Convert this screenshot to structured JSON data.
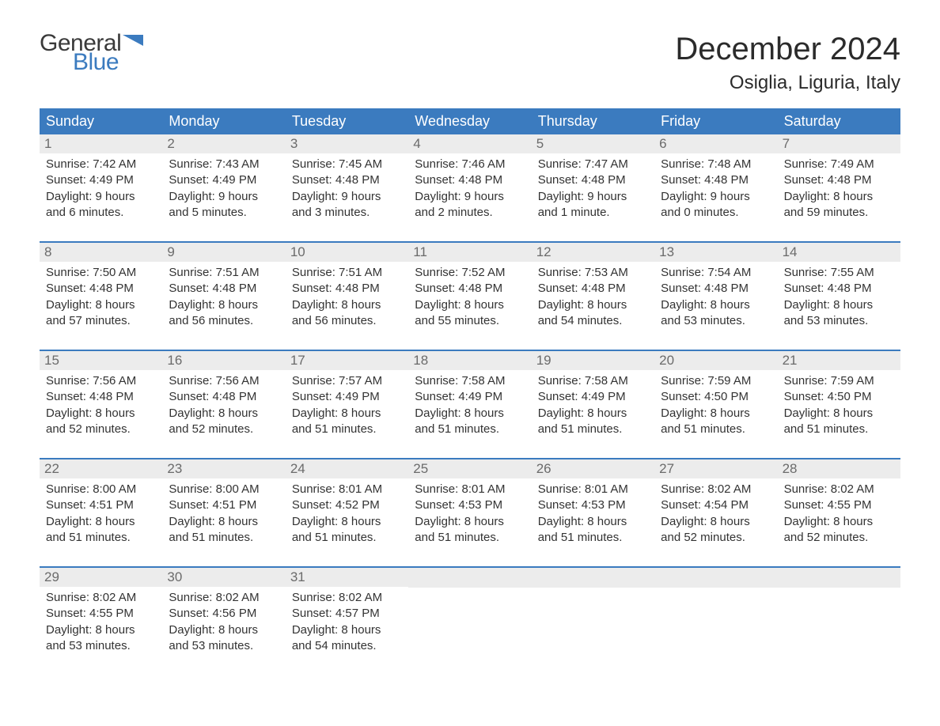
{
  "logo": {
    "general": "General",
    "blue": "Blue",
    "flag_color": "#3b7bbf"
  },
  "title": "December 2024",
  "location": "Osiglia, Liguria, Italy",
  "colors": {
    "header_bg": "#3b7bbf",
    "header_text": "#ffffff",
    "day_bg": "#ececec",
    "day_number": "#6b6b6b",
    "body_text": "#333333",
    "row_border": "#3b7bbf"
  },
  "weekdays": [
    "Sunday",
    "Monday",
    "Tuesday",
    "Wednesday",
    "Thursday",
    "Friday",
    "Saturday"
  ],
  "weeks": [
    [
      {
        "day": "1",
        "sunrise": "Sunrise: 7:42 AM",
        "sunset": "Sunset: 4:49 PM",
        "dl1": "Daylight: 9 hours",
        "dl2": "and 6 minutes."
      },
      {
        "day": "2",
        "sunrise": "Sunrise: 7:43 AM",
        "sunset": "Sunset: 4:49 PM",
        "dl1": "Daylight: 9 hours",
        "dl2": "and 5 minutes."
      },
      {
        "day": "3",
        "sunrise": "Sunrise: 7:45 AM",
        "sunset": "Sunset: 4:48 PM",
        "dl1": "Daylight: 9 hours",
        "dl2": "and 3 minutes."
      },
      {
        "day": "4",
        "sunrise": "Sunrise: 7:46 AM",
        "sunset": "Sunset: 4:48 PM",
        "dl1": "Daylight: 9 hours",
        "dl2": "and 2 minutes."
      },
      {
        "day": "5",
        "sunrise": "Sunrise: 7:47 AM",
        "sunset": "Sunset: 4:48 PM",
        "dl1": "Daylight: 9 hours",
        "dl2": "and 1 minute."
      },
      {
        "day": "6",
        "sunrise": "Sunrise: 7:48 AM",
        "sunset": "Sunset: 4:48 PM",
        "dl1": "Daylight: 9 hours",
        "dl2": "and 0 minutes."
      },
      {
        "day": "7",
        "sunrise": "Sunrise: 7:49 AM",
        "sunset": "Sunset: 4:48 PM",
        "dl1": "Daylight: 8 hours",
        "dl2": "and 59 minutes."
      }
    ],
    [
      {
        "day": "8",
        "sunrise": "Sunrise: 7:50 AM",
        "sunset": "Sunset: 4:48 PM",
        "dl1": "Daylight: 8 hours",
        "dl2": "and 57 minutes."
      },
      {
        "day": "9",
        "sunrise": "Sunrise: 7:51 AM",
        "sunset": "Sunset: 4:48 PM",
        "dl1": "Daylight: 8 hours",
        "dl2": "and 56 minutes."
      },
      {
        "day": "10",
        "sunrise": "Sunrise: 7:51 AM",
        "sunset": "Sunset: 4:48 PM",
        "dl1": "Daylight: 8 hours",
        "dl2": "and 56 minutes."
      },
      {
        "day": "11",
        "sunrise": "Sunrise: 7:52 AM",
        "sunset": "Sunset: 4:48 PM",
        "dl1": "Daylight: 8 hours",
        "dl2": "and 55 minutes."
      },
      {
        "day": "12",
        "sunrise": "Sunrise: 7:53 AM",
        "sunset": "Sunset: 4:48 PM",
        "dl1": "Daylight: 8 hours",
        "dl2": "and 54 minutes."
      },
      {
        "day": "13",
        "sunrise": "Sunrise: 7:54 AM",
        "sunset": "Sunset: 4:48 PM",
        "dl1": "Daylight: 8 hours",
        "dl2": "and 53 minutes."
      },
      {
        "day": "14",
        "sunrise": "Sunrise: 7:55 AM",
        "sunset": "Sunset: 4:48 PM",
        "dl1": "Daylight: 8 hours",
        "dl2": "and 53 minutes."
      }
    ],
    [
      {
        "day": "15",
        "sunrise": "Sunrise: 7:56 AM",
        "sunset": "Sunset: 4:48 PM",
        "dl1": "Daylight: 8 hours",
        "dl2": "and 52 minutes."
      },
      {
        "day": "16",
        "sunrise": "Sunrise: 7:56 AM",
        "sunset": "Sunset: 4:48 PM",
        "dl1": "Daylight: 8 hours",
        "dl2": "and 52 minutes."
      },
      {
        "day": "17",
        "sunrise": "Sunrise: 7:57 AM",
        "sunset": "Sunset: 4:49 PM",
        "dl1": "Daylight: 8 hours",
        "dl2": "and 51 minutes."
      },
      {
        "day": "18",
        "sunrise": "Sunrise: 7:58 AM",
        "sunset": "Sunset: 4:49 PM",
        "dl1": "Daylight: 8 hours",
        "dl2": "and 51 minutes."
      },
      {
        "day": "19",
        "sunrise": "Sunrise: 7:58 AM",
        "sunset": "Sunset: 4:49 PM",
        "dl1": "Daylight: 8 hours",
        "dl2": "and 51 minutes."
      },
      {
        "day": "20",
        "sunrise": "Sunrise: 7:59 AM",
        "sunset": "Sunset: 4:50 PM",
        "dl1": "Daylight: 8 hours",
        "dl2": "and 51 minutes."
      },
      {
        "day": "21",
        "sunrise": "Sunrise: 7:59 AM",
        "sunset": "Sunset: 4:50 PM",
        "dl1": "Daylight: 8 hours",
        "dl2": "and 51 minutes."
      }
    ],
    [
      {
        "day": "22",
        "sunrise": "Sunrise: 8:00 AM",
        "sunset": "Sunset: 4:51 PM",
        "dl1": "Daylight: 8 hours",
        "dl2": "and 51 minutes."
      },
      {
        "day": "23",
        "sunrise": "Sunrise: 8:00 AM",
        "sunset": "Sunset: 4:51 PM",
        "dl1": "Daylight: 8 hours",
        "dl2": "and 51 minutes."
      },
      {
        "day": "24",
        "sunrise": "Sunrise: 8:01 AM",
        "sunset": "Sunset: 4:52 PM",
        "dl1": "Daylight: 8 hours",
        "dl2": "and 51 minutes."
      },
      {
        "day": "25",
        "sunrise": "Sunrise: 8:01 AM",
        "sunset": "Sunset: 4:53 PM",
        "dl1": "Daylight: 8 hours",
        "dl2": "and 51 minutes."
      },
      {
        "day": "26",
        "sunrise": "Sunrise: 8:01 AM",
        "sunset": "Sunset: 4:53 PM",
        "dl1": "Daylight: 8 hours",
        "dl2": "and 51 minutes."
      },
      {
        "day": "27",
        "sunrise": "Sunrise: 8:02 AM",
        "sunset": "Sunset: 4:54 PM",
        "dl1": "Daylight: 8 hours",
        "dl2": "and 52 minutes."
      },
      {
        "day": "28",
        "sunrise": "Sunrise: 8:02 AM",
        "sunset": "Sunset: 4:55 PM",
        "dl1": "Daylight: 8 hours",
        "dl2": "and 52 minutes."
      }
    ],
    [
      {
        "day": "29",
        "sunrise": "Sunrise: 8:02 AM",
        "sunset": "Sunset: 4:55 PM",
        "dl1": "Daylight: 8 hours",
        "dl2": "and 53 minutes."
      },
      {
        "day": "30",
        "sunrise": "Sunrise: 8:02 AM",
        "sunset": "Sunset: 4:56 PM",
        "dl1": "Daylight: 8 hours",
        "dl2": "and 53 minutes."
      },
      {
        "day": "31",
        "sunrise": "Sunrise: 8:02 AM",
        "sunset": "Sunset: 4:57 PM",
        "dl1": "Daylight: 8 hours",
        "dl2": "and 54 minutes."
      },
      null,
      null,
      null,
      null
    ]
  ]
}
